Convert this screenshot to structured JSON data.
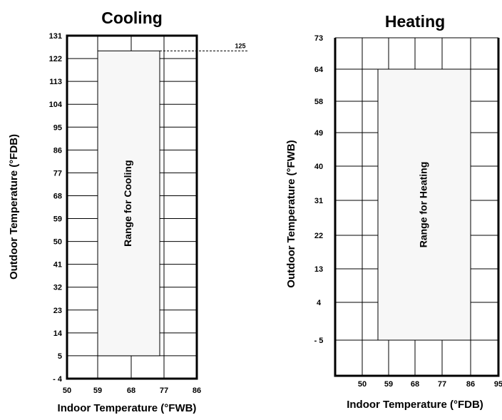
{
  "chart_data": [
    {
      "type": "area",
      "title": "Cooling",
      "xlabel": "Indoor Temperature (°FWB)",
      "ylabel": "Outdoor Temperature (°FDB)",
      "x_ticks": [
        50,
        59,
        68,
        77,
        86
      ],
      "y_ticks": [
        -4,
        5,
        14,
        23,
        32,
        41,
        50,
        59,
        68,
        77,
        86,
        95,
        104,
        113,
        122,
        131
      ],
      "xlim": [
        50,
        86
      ],
      "ylim": [
        -4,
        131
      ],
      "grid": true,
      "range": {
        "label": "Range for Cooling",
        "x": [
          59,
          77
        ],
        "y": [
          5,
          125
        ]
      },
      "annotation": {
        "text": "125",
        "y": 125
      }
    },
    {
      "type": "area",
      "title": "Heating",
      "xlabel": "Indoor Temperature (°FDB)",
      "ylabel": "Outdoor Temperature (°FWB)",
      "x_ticks": [
        50,
        59,
        68,
        77,
        86,
        95
      ],
      "y_tick_labels": [
        "73",
        "64",
        "58",
        "49",
        "40",
        "31",
        "22",
        "13",
        "4",
        "- 5"
      ],
      "xlim": [
        41,
        95
      ],
      "grid": true,
      "range": {
        "label": "Range for Heating",
        "x": [
          55,
          86
        ],
        "y": [
          -5,
          64
        ]
      }
    }
  ]
}
